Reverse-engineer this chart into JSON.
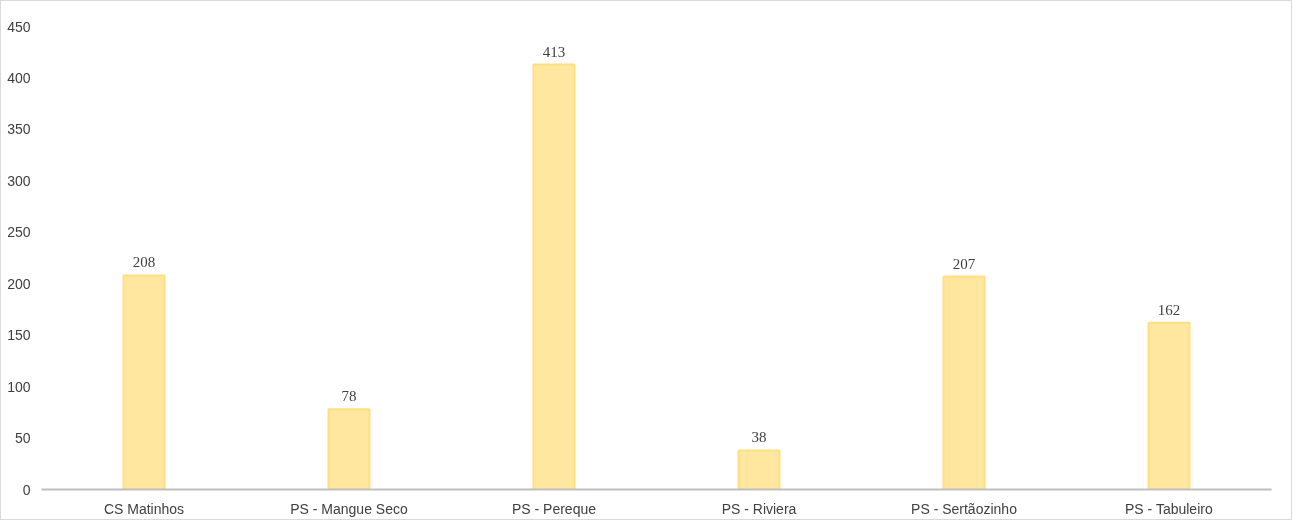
{
  "chart_data": {
    "type": "bar",
    "categories": [
      "CS Matinhos",
      "PS - Mangue Seco",
      "PS - Pereque",
      "PS - Riviera",
      "PS - Sertãozinho",
      "PS - Tabuleiro"
    ],
    "values": [
      208,
      78,
      413,
      38,
      207,
      162
    ],
    "color": "#ffdf80",
    "ylim": [
      0,
      450
    ],
    "yticks": [
      0,
      50,
      100,
      150,
      200,
      250,
      300,
      350,
      400,
      450
    ],
    "data_labels": true,
    "grid": false
  }
}
